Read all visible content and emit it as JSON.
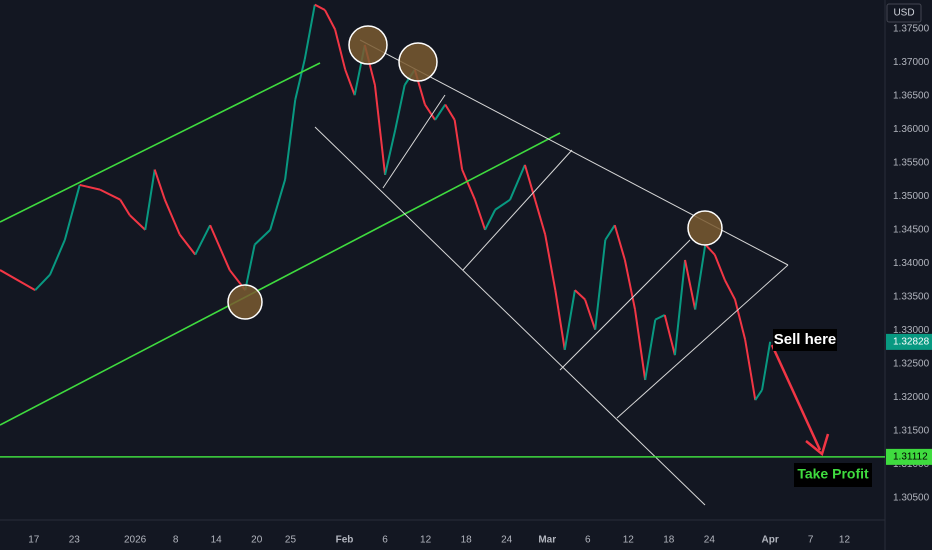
{
  "chart_data": {
    "type": "candle-line",
    "currency": "USD",
    "x": [
      -5,
      0.2,
      2.4,
      4.6,
      6.8,
      9.8,
      12.8,
      14.2,
      16.5,
      17.9,
      19.4,
      21.6,
      23.9,
      26.1,
      29.0,
      31.3,
      32.7,
      35.0,
      37.2,
      38.7,
      40.1,
      41.6,
      43.1,
      44.6,
      46.1,
      47.5,
      49.0,
      50.5,
      52.0,
      53.5,
      54.9,
      56.4,
      57.9,
      59.4,
      60.9,
      62.3,
      63.4,
      65.3,
      66.8,
      68.3,
      70.5,
      72.7,
      74.2,
      75.7,
      77.2,
      78.6,
      80.1,
      81.6,
      83.1,
      84.6,
      86.0,
      87.5,
      89.0,
      90.5,
      92.0,
      93.4,
      94.9,
      96.4,
      97.9,
      99.4,
      100.8,
      102.3,
      103.8,
      105.3,
      106.8,
      107.8,
      109.0
    ],
    "values": [
      1.339,
      1.336,
      1.3383,
      1.3435,
      1.3517,
      1.351,
      1.3495,
      1.3472,
      1.345,
      1.354,
      1.3495,
      1.3443,
      1.3413,
      1.3457,
      1.339,
      1.336,
      1.3428,
      1.345,
      1.3525,
      1.3644,
      1.3704,
      1.3786,
      1.3778,
      1.3749,
      1.3689,
      1.3651,
      1.3726,
      1.3666,
      1.3532,
      1.3599,
      1.3666,
      1.3689,
      1.3637,
      1.3614,
      1.3637,
      1.3614,
      1.354,
      1.3495,
      1.345,
      1.348,
      1.3495,
      1.3547,
      1.3495,
      1.3443,
      1.336,
      1.3271,
      1.336,
      1.3346,
      1.3301,
      1.3435,
      1.3457,
      1.3405,
      1.3331,
      1.3226,
      1.3316,
      1.3323,
      1.3263,
      1.3405,
      1.3331,
      1.3428,
      1.3413,
      1.3375,
      1.3346,
      1.3286,
      1.3196,
      1.3211,
      1.3283
    ],
    "up_color": "#089981",
    "down_color": "#f23645",
    "xlim": [
      -5,
      126
    ],
    "xticks": [
      {
        "value": 0,
        "label": "17"
      },
      {
        "value": 6,
        "label": "23"
      },
      {
        "value": 15,
        "label": "2026"
      },
      {
        "value": 21,
        "label": "8"
      },
      {
        "value": 27,
        "label": "14"
      },
      {
        "value": 33,
        "label": "20"
      },
      {
        "value": 38,
        "label": "25"
      },
      {
        "value": 46,
        "label": "Feb"
      },
      {
        "value": 52,
        "label": "6"
      },
      {
        "value": 58,
        "label": "12"
      },
      {
        "value": 64,
        "label": "18"
      },
      {
        "value": 70,
        "label": "24"
      },
      {
        "value": 76,
        "label": "Mar"
      },
      {
        "value": 82,
        "label": "6"
      },
      {
        "value": 88,
        "label": "12"
      },
      {
        "value": 94,
        "label": "18"
      },
      {
        "value": 100,
        "label": "24"
      },
      {
        "value": 109,
        "label": "Apr"
      },
      {
        "value": 115,
        "label": "7"
      },
      {
        "value": 120,
        "label": "12"
      }
    ],
    "ylim": [
      1.3017,
      1.3793
    ],
    "yticks": [
      {
        "value": 1.305,
        "label": "1.30500"
      },
      {
        "value": 1.31,
        "label": "1.31000"
      },
      {
        "value": 1.315,
        "label": "1.31500"
      },
      {
        "value": 1.32,
        "label": "1.32000"
      },
      {
        "value": 1.325,
        "label": "1.32500"
      },
      {
        "value": 1.33,
        "label": "1.33000"
      },
      {
        "value": 1.335,
        "label": "1.33500"
      },
      {
        "value": 1.34,
        "label": "1.34000"
      },
      {
        "value": 1.345,
        "label": "1.34500"
      },
      {
        "value": 1.35,
        "label": "1.35000"
      },
      {
        "value": 1.355,
        "label": "1.35500"
      },
      {
        "value": 1.36,
        "label": "1.36000"
      },
      {
        "value": 1.365,
        "label": "1.36500"
      },
      {
        "value": 1.37,
        "label": "1.37000"
      },
      {
        "value": 1.375,
        "label": "1.37500"
      }
    ],
    "current_price": 1.32828,
    "take_profit": 1.31112,
    "annotations": [
      "Sell here",
      "Take Profit"
    ]
  }
}
